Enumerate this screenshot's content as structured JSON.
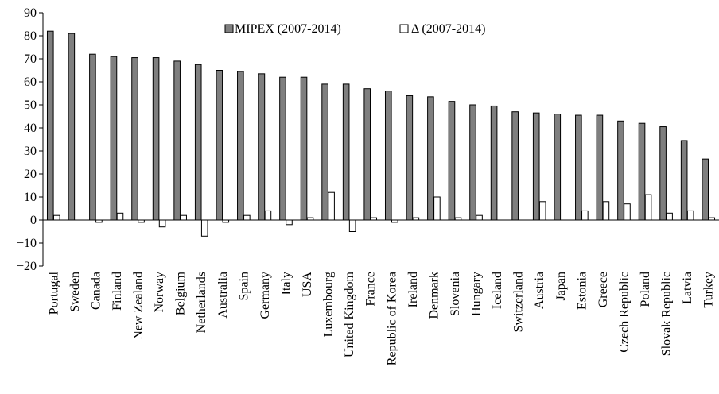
{
  "chart_data": {
    "type": "bar",
    "categories": [
      "Portugal",
      "Sweden",
      "Canada",
      "Finland",
      "New Zealand",
      "Norway",
      "Belgium",
      "Netherlands",
      "Australia",
      "Spain",
      "Germany",
      "Italy",
      "USA",
      "Luxembourg",
      "United Kingdom",
      "France",
      "Republic of Korea",
      "Ireland",
      "Denmark",
      "Slovenia",
      "Hungary",
      "Iceland",
      "Switzerland",
      "Austria",
      "Japan",
      "Estonia",
      "Greece",
      "Czech Republic",
      "Poland",
      "Slovak Republic",
      "Latvia",
      "Turkey"
    ],
    "series": [
      {
        "name": "MIPEX (2007-2014)",
        "color": "#7f7f7f",
        "values": [
          82,
          81,
          72,
          71,
          70.5,
          70.5,
          69,
          67.5,
          65,
          64.5,
          63.5,
          62,
          62,
          59,
          59,
          57,
          56,
          54,
          53.5,
          51.5,
          50,
          49.5,
          47,
          46.5,
          46,
          45.5,
          45.5,
          43,
          42,
          40.5,
          34.5,
          26.5
        ]
      },
      {
        "name": "Δ (2007-2014)",
        "color": "#ffffff",
        "values": [
          2,
          0,
          -1,
          3,
          -1,
          -3,
          2,
          -7,
          -1,
          2,
          4,
          -2,
          1,
          12,
          -5,
          1,
          -1,
          1,
          10,
          1,
          2,
          0,
          0,
          8,
          0,
          4,
          8,
          7,
          11,
          3,
          4,
          1
        ]
      }
    ],
    "ylim": [
      -20,
      90
    ],
    "yticks": [
      -20,
      -10,
      0,
      10,
      20,
      30,
      40,
      50,
      60,
      70,
      80,
      90
    ],
    "ytick_labels": [
      "−20",
      "−10",
      "0",
      "10",
      "20",
      "30",
      "40",
      "50",
      "60",
      "70",
      "80",
      "90"
    ],
    "title": "",
    "xlabel": "",
    "ylabel": "",
    "grid": false,
    "legend": "top-center"
  }
}
